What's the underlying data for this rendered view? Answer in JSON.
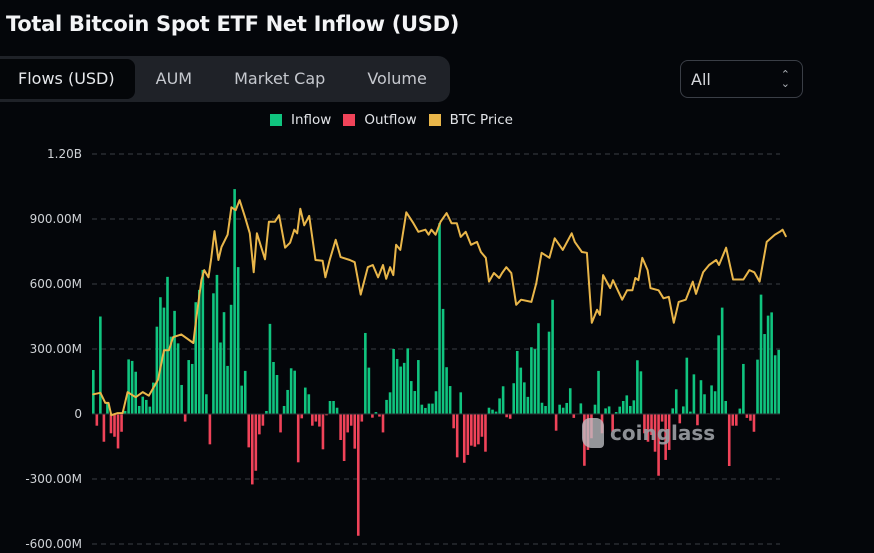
{
  "header": {
    "title": "Total Bitcoin Spot ETF Net Inflow (USD)"
  },
  "tabs": [
    {
      "label": "Flows (USD)",
      "active": true
    },
    {
      "label": "AUM",
      "active": false
    },
    {
      "label": "Market Cap",
      "active": false
    },
    {
      "label": "Volume",
      "active": false
    }
  ],
  "range_select": {
    "value": "All",
    "icon": "chevron-up-down-icon"
  },
  "watermark": "coinglass",
  "colors": {
    "inflow": "#10c47f",
    "outflow": "#f04359",
    "btc_price": "#e9b64a",
    "background": "#04060a"
  },
  "chart_data": {
    "type": "bar",
    "title": "",
    "legend": {
      "placement": "top-center",
      "entries": [
        "Inflow",
        "Outflow",
        "BTC Price"
      ]
    },
    "y_unit": "USD (millions)",
    "yticks": [
      {
        "value": 1200,
        "label": "1.20B"
      },
      {
        "value": 900,
        "label": "900.00M"
      },
      {
        "value": 600,
        "label": "600.00M"
      },
      {
        "value": 300,
        "label": "300.00M"
      },
      {
        "value": 0,
        "label": "0"
      },
      {
        "value": -300,
        "label": "-300.00M"
      },
      {
        "value": -600,
        "label": "-600.00M"
      }
    ],
    "ylim": [
      -600,
      1200
    ],
    "grid": true,
    "net_flow_millions": [
      203,
      -54,
      450,
      -128,
      50,
      -89,
      -105,
      -159,
      -82,
      14,
      252,
      245,
      195,
      37,
      80,
      65,
      34,
      145,
      403,
      539,
      491,
      633,
      357,
      476,
      326,
      134,
      -35,
      249,
      231,
      516,
      573,
      665,
      91,
      -140,
      557,
      642,
      330,
      470,
      222,
      504,
      1038,
      678,
      131,
      199,
      -154,
      -325,
      -262,
      -94,
      -54,
      14,
      416,
      240,
      180,
      -85,
      37,
      111,
      211,
      200,
      -223,
      -20,
      122,
      91,
      -54,
      -35,
      -58,
      -163,
      -6,
      60,
      60,
      29,
      -120,
      -217,
      -85,
      -54,
      -160,
      -562,
      -35,
      374,
      214,
      -17,
      9,
      -12,
      -85,
      65,
      100,
      300,
      254,
      219,
      236,
      303,
      152,
      106,
      249,
      43,
      28,
      48,
      48,
      105,
      881,
      485,
      216,
      129,
      -66,
      -200,
      100,
      -225,
      -189,
      -146,
      -151,
      -140,
      -105,
      -174,
      29,
      20,
      11,
      72,
      128,
      -15,
      -22,
      142,
      291,
      214,
      146,
      79,
      308,
      299,
      419,
      52,
      37,
      380,
      527,
      -77,
      43,
      29,
      51,
      119,
      -18,
      0,
      49,
      -239,
      -166,
      -112,
      43,
      199,
      -89,
      26,
      35,
      -82,
      9,
      34,
      60,
      86,
      37,
      63,
      248,
      197,
      -89,
      -128,
      -97,
      -174,
      -285,
      -35,
      -212,
      -166,
      26,
      114,
      -43,
      35,
      260,
      11,
      183,
      -52,
      156,
      91,
      3,
      132,
      105,
      363,
      491,
      60,
      -240,
      -54,
      -54,
      25,
      231,
      -18,
      -31,
      -82,
      251,
      551,
      369,
      454,
      469,
      271,
      296
    ],
    "btc_price_thousands_usd": [
      [
        0,
        46.1
      ],
      [
        2,
        46.3
      ],
      [
        3.4,
        44.9
      ],
      [
        4.3,
        44.9
      ],
      [
        5.1,
        43.2
      ],
      [
        6.9,
        43.5
      ],
      [
        8.3,
        43.5
      ],
      [
        9.7,
        46.4
      ],
      [
        12,
        45.7
      ],
      [
        14,
        46.4
      ],
      [
        15.7,
        45.9
      ],
      [
        18.3,
        48.1
      ],
      [
        20,
        52.2
      ],
      [
        21.4,
        52.2
      ],
      [
        22.6,
        54.0
      ],
      [
        24.9,
        54.4
      ],
      [
        28.3,
        53.2
      ],
      [
        29.1,
        56.4
      ],
      [
        30.6,
        61.9
      ],
      [
        31.4,
        63.3
      ],
      [
        32.6,
        62.3
      ],
      [
        33.4,
        65.0
      ],
      [
        34.3,
        68.7
      ],
      [
        35.4,
        64.7
      ],
      [
        36.3,
        66.5
      ],
      [
        38,
        68.2
      ],
      [
        39.1,
        72.0
      ],
      [
        40.3,
        71.6
      ],
      [
        41.4,
        73.0
      ],
      [
        42.9,
        70.7
      ],
      [
        44.3,
        68.4
      ],
      [
        45.4,
        63.0
      ],
      [
        46.3,
        68.4
      ],
      [
        48.6,
        64.8
      ],
      [
        49.7,
        70.0
      ],
      [
        51.4,
        70.0
      ],
      [
        52.6,
        70.9
      ],
      [
        54.3,
        66.4
      ],
      [
        55.7,
        67.1
      ],
      [
        56.9,
        68.9
      ],
      [
        57.7,
        68.4
      ],
      [
        58.6,
        71.8
      ],
      [
        59.7,
        69.5
      ],
      [
        61.1,
        70.8
      ],
      [
        62.9,
        64.7
      ],
      [
        64.9,
        64.6
      ],
      [
        65.7,
        62.3
      ],
      [
        66.9,
        64.7
      ],
      [
        68.6,
        67.5
      ],
      [
        70,
        65.1
      ],
      [
        72.6,
        64.7
      ],
      [
        74,
        64.4
      ],
      [
        75.7,
        59.9
      ],
      [
        77.7,
        63.7
      ],
      [
        79.1,
        64.0
      ],
      [
        80.6,
        62.3
      ],
      [
        82,
        64.0
      ],
      [
        82.9,
        62.1
      ],
      [
        84,
        63.7
      ],
      [
        84.9,
        62.6
      ],
      [
        85.7,
        66.8
      ],
      [
        86.9,
        66.1
      ],
      [
        88.6,
        71.3
      ],
      [
        90.6,
        69.8
      ],
      [
        92,
        68.6
      ],
      [
        94,
        68.9
      ],
      [
        94.9,
        68.2
      ],
      [
        95.7,
        68.9
      ],
      [
        96.9,
        68.2
      ],
      [
        98.3,
        70.0
      ],
      [
        100,
        71.2
      ],
      [
        101.4,
        69.8
      ],
      [
        102.9,
        69.8
      ],
      [
        104,
        67.9
      ],
      [
        105.4,
        68.6
      ],
      [
        106.9,
        66.8
      ],
      [
        108.6,
        67.2
      ],
      [
        109.7,
        65.8
      ],
      [
        111.1,
        65.0
      ],
      [
        112,
        61.7
      ],
      [
        113.4,
        62.9
      ],
      [
        114.9,
        62.2
      ],
      [
        115.7,
        62.9
      ],
      [
        116.9,
        63.7
      ],
      [
        118.3,
        62.9
      ],
      [
        119.7,
        58.5
      ],
      [
        121.1,
        59.2
      ],
      [
        124,
        58.9
      ],
      [
        125.4,
        61.5
      ],
      [
        126.9,
        65.7
      ],
      [
        129.1,
        65.0
      ],
      [
        130.6,
        67.7
      ],
      [
        132.9,
        66.1
      ],
      [
        135.4,
        68.4
      ],
      [
        136.3,
        67.2
      ],
      [
        138.3,
        65.8
      ],
      [
        139.7,
        65.7
      ],
      [
        141.1,
        56.0
      ],
      [
        142.6,
        57.8
      ],
      [
        143.4,
        57.1
      ],
      [
        144.3,
        62.6
      ],
      [
        146.3,
        60.8
      ],
      [
        147.1,
        61.9
      ],
      [
        149.7,
        59.2
      ],
      [
        151.1,
        60.5
      ],
      [
        152.6,
        60.5
      ],
      [
        153.4,
        62.2
      ],
      [
        154.3,
        61.9
      ],
      [
        155.4,
        65.0
      ],
      [
        156.9,
        63.3
      ],
      [
        157.7,
        60.8
      ],
      [
        160,
        60.5
      ],
      [
        161.4,
        59.4
      ],
      [
        162.9,
        59.6
      ],
      [
        164.3,
        56.0
      ],
      [
        165.7,
        58.9
      ],
      [
        167.7,
        59.2
      ],
      [
        169.7,
        61.7
      ],
      [
        170.6,
        60.0
      ],
      [
        172.6,
        63.0
      ],
      [
        174.3,
        64.0
      ],
      [
        176.3,
        64.7
      ],
      [
        177.1,
        64.0
      ],
      [
        179.1,
        66.4
      ],
      [
        181.1,
        62.0
      ],
      [
        184,
        62.0
      ],
      [
        185.7,
        63.3
      ],
      [
        187.1,
        63.0
      ],
      [
        188.6,
        61.7
      ],
      [
        190.6,
        67.2
      ],
      [
        192.9,
        68.2
      ],
      [
        194.3,
        68.6
      ],
      [
        195.1,
        68.9
      ],
      [
        196,
        68.0
      ]
    ]
  }
}
